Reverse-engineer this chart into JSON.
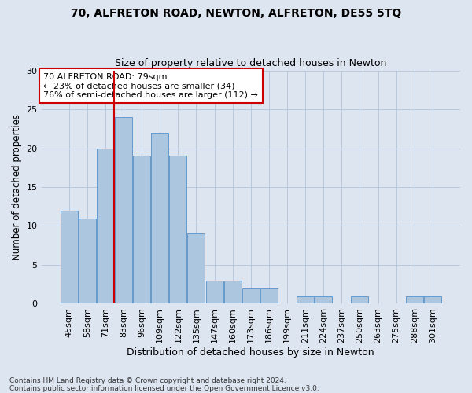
{
  "title1": "70, ALFRETON ROAD, NEWTON, ALFRETON, DE55 5TQ",
  "title2": "Size of property relative to detached houses in Newton",
  "xlabel": "Distribution of detached houses by size in Newton",
  "ylabel": "Number of detached properties",
  "categories": [
    "45sqm",
    "58sqm",
    "71sqm",
    "83sqm",
    "96sqm",
    "109sqm",
    "122sqm",
    "135sqm",
    "147sqm",
    "160sqm",
    "173sqm",
    "186sqm",
    "199sqm",
    "211sqm",
    "224sqm",
    "237sqm",
    "250sqm",
    "263sqm",
    "275sqm",
    "288sqm",
    "301sqm"
  ],
  "values": [
    12,
    11,
    20,
    24,
    19,
    22,
    19,
    9,
    3,
    3,
    2,
    2,
    0,
    1,
    1,
    0,
    1,
    0,
    0,
    1,
    1
  ],
  "bar_color": "#adc6e0",
  "bar_edge_color": "#6699cc",
  "background_color": "#dde5f0",
  "vline_x_index": 2,
  "vline_color": "#cc0000",
  "annotation_text": "70 ALFRETON ROAD: 79sqm\n← 23% of detached houses are smaller (34)\n76% of semi-detached houses are larger (112) →",
  "annotation_box_color": "#ffffff",
  "annotation_box_edgecolor": "#cc0000",
  "footnote1": "Contains HM Land Registry data © Crown copyright and database right 2024.",
  "footnote2": "Contains public sector information licensed under the Open Government Licence v3.0.",
  "ylim": [
    0,
    30
  ],
  "yticks": [
    0,
    5,
    10,
    15,
    20,
    25,
    30
  ],
  "grid_color": "#b8c8dc"
}
